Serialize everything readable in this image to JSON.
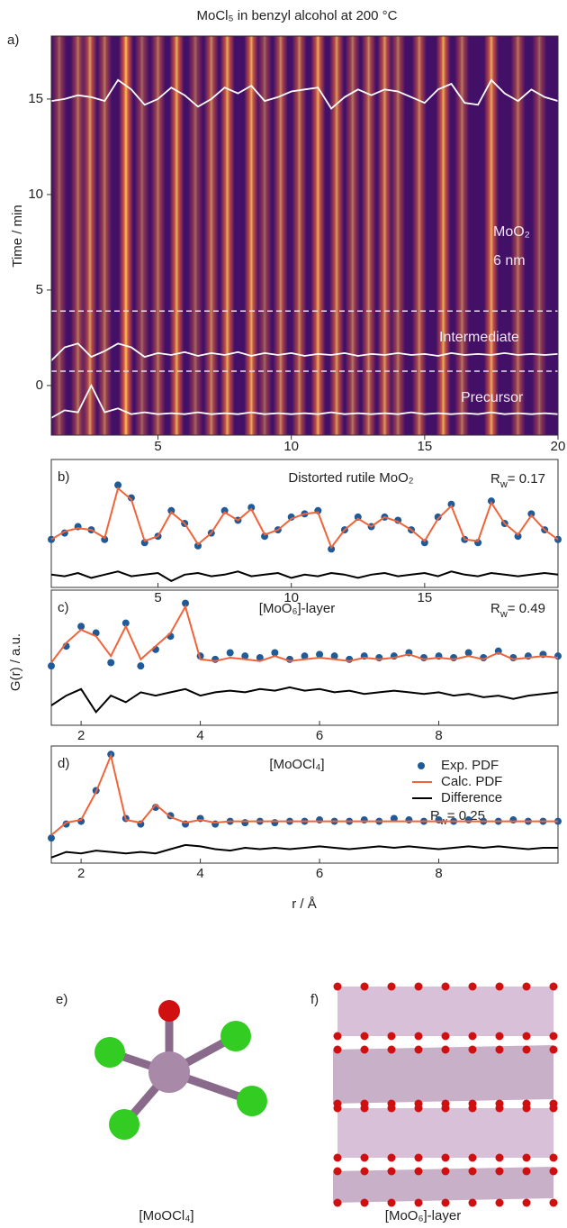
{
  "chart_data": [
    {
      "type": "heatmap",
      "panel": "a)",
      "title": "MoCl₅ in benzyl alcohol at 200 °C",
      "ylabel": "Time / min",
      "xlim": [
        1,
        20
      ],
      "xticks": [
        5,
        10,
        15,
        20
      ],
      "ylim": [
        -2.6,
        18.3
      ],
      "yticks": [
        0,
        5,
        10,
        15
      ],
      "background": "#431067",
      "curve_color": "#ffffff",
      "stripes": {
        "x": [
          1.3,
          2.0,
          2.45,
          3.0,
          3.8,
          4.4,
          5.0,
          5.7,
          6.4,
          7.0,
          7.6,
          8.5,
          9.0,
          9.6,
          10.3,
          11.0,
          11.7,
          12.3,
          12.9,
          13.5,
          14.0,
          14.8,
          15.7,
          16.4,
          17.5,
          18.5,
          19.3
        ],
        "values": [
          0.5,
          0.6,
          0.8,
          0.6,
          1.0,
          0.5,
          0.6,
          0.9,
          0.5,
          0.7,
          0.9,
          0.9,
          0.5,
          0.7,
          0.7,
          0.9,
          0.8,
          0.6,
          0.7,
          0.8,
          0.6,
          0.7,
          0.9,
          0.6,
          0.9,
          0.6,
          0.5
        ]
      },
      "boundaries": [
        3.9,
        0.75
      ],
      "x": [
        1,
        1.5,
        2,
        2.5,
        3,
        3.5,
        4,
        4.5,
        5,
        5.5,
        6,
        6.5,
        7,
        7.5,
        8,
        8.5,
        9,
        9.5,
        10,
        10.5,
        11,
        11.5,
        12,
        12.5,
        13,
        13.5,
        14,
        14.5,
        15,
        15.5,
        16,
        16.5,
        17,
        17.5,
        18,
        18.5,
        19,
        19.5,
        20
      ],
      "series": [
        {
          "values": [
            14.9,
            15.0,
            15.2,
            15.1,
            14.9,
            16.0,
            15.5,
            14.7,
            15.0,
            15.6,
            15.2,
            14.6,
            15.0,
            15.6,
            15.3,
            15.7,
            14.9,
            15.1,
            15.4,
            15.5,
            15.6,
            14.5,
            15.1,
            15.5,
            15.2,
            15.5,
            15.4,
            15.1,
            14.8,
            15.5,
            15.8,
            14.8,
            14.7,
            16.0,
            15.3,
            14.9,
            15.5,
            15.1,
            14.9
          ]
        },
        {
          "values": [
            1.3,
            2.0,
            2.2,
            1.5,
            1.8,
            2.2,
            2.0,
            1.5,
            1.7,
            1.6,
            1.75,
            1.55,
            1.7,
            1.6,
            1.75,
            1.55,
            1.7,
            1.6,
            1.7,
            1.55,
            1.65,
            1.6,
            1.7,
            1.55,
            1.65,
            1.6,
            1.7,
            1.6,
            1.65,
            1.55,
            1.7,
            1.6,
            1.65,
            1.6,
            1.7,
            1.6,
            1.65,
            1.6,
            1.65
          ]
        },
        {
          "values": [
            -1.7,
            -1.3,
            -1.4,
            0.0,
            -1.4,
            -1.2,
            -1.5,
            -1.4,
            -1.5,
            -1.45,
            -1.5,
            -1.4,
            -1.5,
            -1.45,
            -1.5,
            -1.4,
            -1.5,
            -1.45,
            -1.5,
            -1.45,
            -1.5,
            -1.4,
            -1.5,
            -1.45,
            -1.5,
            -1.45,
            -1.5,
            -1.4,
            -1.5,
            -1.45,
            -1.5,
            -1.45,
            -1.5,
            -1.4,
            -1.5,
            -1.45,
            -1.5,
            -1.45,
            -1.5
          ]
        }
      ],
      "annotations": [
        "MoO₂",
        "6 nm",
        "Intermediate",
        "Precursor"
      ]
    },
    {
      "type": "line",
      "panel": "b)",
      "title": "Distorted rutile MoO₂",
      "rw": [
        "R",
        "w",
        "= 0.17"
      ],
      "xlim": [
        1,
        20
      ],
      "xticks": [
        5,
        10,
        15
      ],
      "ylim": [
        -1.2,
        2.8
      ],
      "legend": false,
      "x": [
        1,
        1.5,
        2,
        2.5,
        3,
        3.5,
        4,
        4.5,
        5,
        5.5,
        6,
        6.5,
        7,
        7.5,
        8,
        8.5,
        9,
        9.5,
        10,
        10.5,
        11,
        11.5,
        12,
        12.5,
        13,
        13.5,
        14,
        14.5,
        15,
        15.5,
        16,
        16.5,
        17,
        17.5,
        18,
        18.5,
        19,
        19.5,
        20
      ],
      "series": [
        {
          "mark": "dot",
          "color": "#1f5a99",
          "values": [
            0.3,
            0.5,
            0.7,
            0.6,
            0.3,
            2.0,
            1.6,
            0.2,
            0.4,
            1.2,
            0.8,
            0.1,
            0.5,
            1.2,
            0.9,
            1.3,
            0.4,
            0.6,
            1.0,
            1.1,
            1.2,
            0.0,
            0.6,
            1.0,
            0.7,
            1.0,
            0.9,
            0.6,
            0.2,
            1.0,
            1.4,
            0.3,
            0.2,
            1.5,
            0.8,
            0.4,
            1.1,
            0.6,
            0.3
          ]
        },
        {
          "mark": "line",
          "color": "#f0643a",
          "values": [
            0.3,
            0.55,
            0.65,
            0.6,
            0.35,
            1.9,
            1.55,
            0.25,
            0.4,
            1.15,
            0.8,
            0.15,
            0.5,
            1.15,
            0.9,
            1.25,
            0.45,
            0.6,
            0.95,
            1.1,
            1.15,
            0.05,
            0.6,
            0.95,
            0.7,
            1.0,
            0.85,
            0.6,
            0.25,
            0.95,
            1.35,
            0.3,
            0.25,
            1.45,
            0.8,
            0.45,
            1.05,
            0.6,
            0.3
          ]
        },
        {
          "mark": "line",
          "color": "#000000",
          "values": [
            -0.8,
            -0.85,
            -0.75,
            -0.9,
            -0.8,
            -0.7,
            -0.85,
            -0.8,
            -0.75,
            -1.0,
            -0.8,
            -0.75,
            -0.85,
            -0.8,
            -0.7,
            -0.85,
            -0.8,
            -0.75,
            -0.9,
            -0.8,
            -0.85,
            -0.75,
            -0.8,
            -0.9,
            -0.8,
            -0.75,
            -0.85,
            -0.8,
            -0.75,
            -0.85,
            -0.7,
            -0.8,
            -0.85,
            -0.75,
            -0.8,
            -0.85,
            -0.8,
            -0.75,
            -0.8
          ]
        }
      ]
    },
    {
      "type": "line",
      "panel": "c)",
      "title": "[MoO₆]-layer",
      "rw": [
        "R",
        "w",
        "= 0.49"
      ],
      "ylabel": "G(r) / a.u.",
      "xlim": [
        1.5,
        10
      ],
      "xticks": [
        2,
        4,
        6,
        8
      ],
      "ylim": [
        -1.5,
        2.6
      ],
      "legend": false,
      "x": [
        1.5,
        1.75,
        2,
        2.25,
        2.5,
        2.75,
        3,
        3.25,
        3.5,
        3.75,
        4,
        4.25,
        4.5,
        4.75,
        5,
        5.25,
        5.5,
        5.75,
        6,
        6.25,
        6.5,
        6.75,
        7,
        7.25,
        7.5,
        7.75,
        8,
        8.25,
        8.5,
        8.75,
        9,
        9.25,
        9.5,
        9.75,
        10
      ],
      "series": [
        {
          "mark": "dot",
          "color": "#1f5a99",
          "values": [
            0.3,
            0.9,
            1.5,
            1.3,
            0.4,
            1.6,
            0.3,
            0.8,
            1.2,
            2.2,
            0.6,
            0.5,
            0.7,
            0.6,
            0.55,
            0.7,
            0.5,
            0.6,
            0.65,
            0.6,
            0.5,
            0.6,
            0.55,
            0.6,
            0.7,
            0.55,
            0.6,
            0.55,
            0.7,
            0.55,
            0.75,
            0.55,
            0.6,
            0.65,
            0.6
          ]
        },
        {
          "mark": "line",
          "color": "#f0643a",
          "values": [
            0.4,
            1.0,
            1.4,
            1.2,
            0.6,
            1.5,
            0.5,
            0.9,
            1.3,
            2.1,
            0.5,
            0.45,
            0.55,
            0.5,
            0.45,
            0.6,
            0.45,
            0.5,
            0.55,
            0.5,
            0.45,
            0.55,
            0.5,
            0.55,
            0.65,
            0.5,
            0.55,
            0.5,
            0.6,
            0.5,
            0.7,
            0.5,
            0.55,
            0.6,
            0.55
          ]
        },
        {
          "mark": "line",
          "color": "#000000",
          "values": [
            -0.9,
            -0.6,
            -0.4,
            -1.1,
            -0.6,
            -0.8,
            -0.5,
            -0.6,
            -0.5,
            -0.4,
            -0.6,
            -0.5,
            -0.45,
            -0.5,
            -0.4,
            -0.45,
            -0.35,
            -0.45,
            -0.4,
            -0.5,
            -0.45,
            -0.55,
            -0.5,
            -0.45,
            -0.5,
            -0.55,
            -0.5,
            -0.6,
            -0.55,
            -0.65,
            -0.6,
            -0.7,
            -0.6,
            -0.55,
            -0.5
          ]
        }
      ]
    },
    {
      "type": "line",
      "panel": "d)",
      "title": "[MoOCl₄]",
      "rw": [
        "R",
        "w",
        "= 0.25"
      ],
      "xlabel": "r / Å",
      "xlim": [
        1.5,
        10
      ],
      "xticks": [
        2,
        4,
        6,
        8
      ],
      "ylim": [
        -1.1,
        3.1
      ],
      "legend": true,
      "x": [
        1.5,
        1.75,
        2,
        2.25,
        2.5,
        2.75,
        3,
        3.25,
        3.5,
        3.75,
        4,
        4.25,
        4.5,
        4.75,
        5,
        5.25,
        5.5,
        5.75,
        6,
        6.25,
        6.5,
        6.75,
        7,
        7.25,
        7.5,
        7.75,
        8,
        8.25,
        8.5,
        8.75,
        9,
        9.25,
        9.5,
        9.75,
        10
      ],
      "series": [
        {
          "name": "Exp. PDF",
          "mark": "dot",
          "color": "#1f5a99",
          "values": [
            -0.2,
            0.3,
            0.4,
            1.5,
            2.8,
            0.5,
            0.3,
            0.9,
            0.6,
            0.3,
            0.5,
            0.3,
            0.4,
            0.35,
            0.4,
            0.35,
            0.4,
            0.4,
            0.45,
            0.4,
            0.4,
            0.45,
            0.4,
            0.5,
            0.45,
            0.4,
            0.45,
            0.4,
            0.45,
            0.4,
            0.4,
            0.45,
            0.4,
            0.4,
            0.4
          ]
        },
        {
          "name": "Calc. PDF",
          "mark": "line",
          "color": "#f0643a",
          "values": [
            -0.1,
            0.35,
            0.45,
            1.45,
            2.75,
            0.45,
            0.35,
            1.0,
            0.55,
            0.35,
            0.45,
            0.35,
            0.4,
            0.4,
            0.4,
            0.4,
            0.4,
            0.4,
            0.4,
            0.4,
            0.4,
            0.4,
            0.4,
            0.4,
            0.4,
            0.4,
            0.4,
            0.4,
            0.4,
            0.4,
            0.4,
            0.4,
            0.4,
            0.4,
            0.4
          ]
        },
        {
          "name": "Difference",
          "mark": "line",
          "color": "#000000",
          "values": [
            -0.9,
            -0.7,
            -0.75,
            -0.65,
            -0.7,
            -0.75,
            -0.7,
            -0.75,
            -0.6,
            -0.45,
            -0.5,
            -0.6,
            -0.65,
            -0.55,
            -0.6,
            -0.55,
            -0.6,
            -0.55,
            -0.5,
            -0.55,
            -0.6,
            -0.55,
            -0.5,
            -0.55,
            -0.5,
            -0.55,
            -0.6,
            -0.55,
            -0.5,
            -0.55,
            -0.5,
            -0.55,
            -0.6,
            -0.55,
            -0.55
          ]
        }
      ]
    }
  ],
  "structures": [
    {
      "panel": "e)",
      "caption": "[MoOCl₄]"
    },
    {
      "panel": "f)",
      "caption": "[MoO₆]-layer"
    }
  ]
}
